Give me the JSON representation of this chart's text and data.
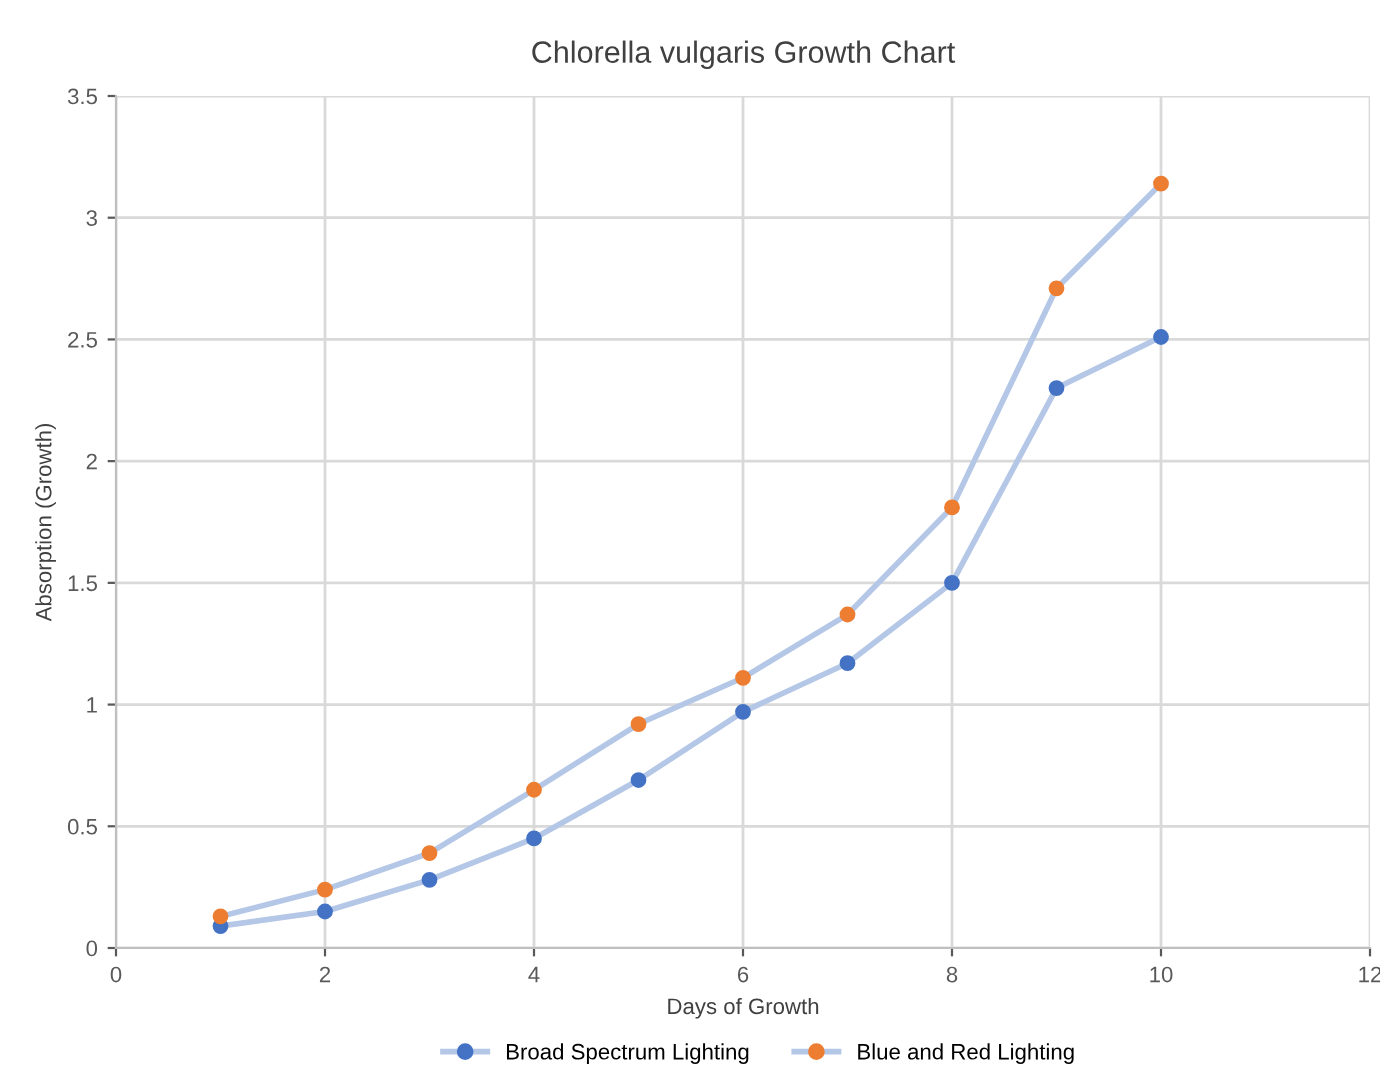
{
  "chart_data": {
    "type": "line",
    "title": "Chlorella vulgaris Growth Chart",
    "xlabel": "Days of Growth",
    "ylabel": "Absorption (Growth)",
    "x": [
      1,
      2,
      3,
      4,
      5,
      6,
      7,
      8,
      9,
      10
    ],
    "series": [
      {
        "name": "Broad Spectrum Lighting",
        "color": "#4472c4",
        "values": [
          0.09,
          0.15,
          0.28,
          0.45,
          0.69,
          0.97,
          1.17,
          1.5,
          2.3,
          2.51
        ]
      },
      {
        "name": "Blue and Red Lighting",
        "color": "#ed7d31",
        "values": [
          0.13,
          0.24,
          0.39,
          0.65,
          0.92,
          1.11,
          1.37,
          1.81,
          2.71,
          3.14
        ]
      }
    ],
    "xlim": [
      0,
      12
    ],
    "xticks": [
      0,
      2,
      4,
      6,
      8,
      10,
      12
    ],
    "ylim": [
      0,
      3.5
    ],
    "yticks": [
      0,
      0.5,
      1,
      1.5,
      2,
      2.5,
      3,
      3.5
    ],
    "grid": true,
    "legend": "bottom",
    "marker": "circle",
    "line_style": "solid"
  }
}
